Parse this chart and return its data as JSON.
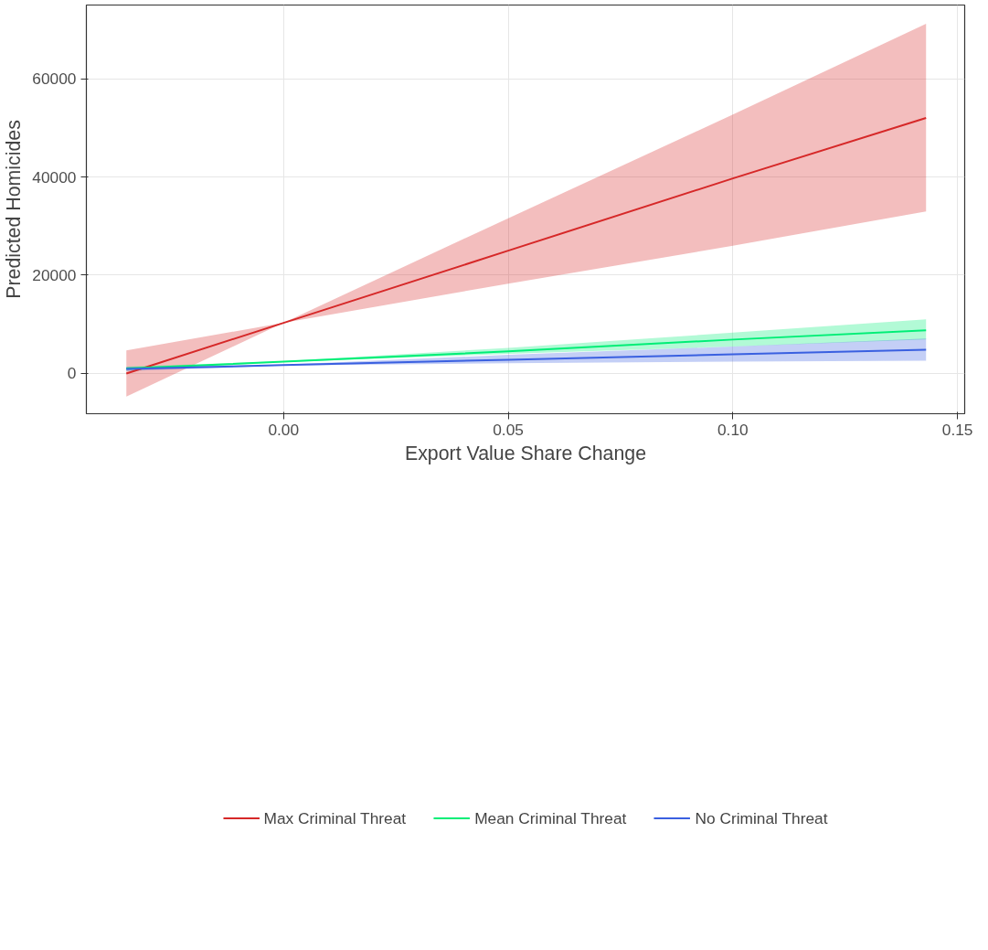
{
  "chart_data": {
    "type": "line",
    "xlabel": "Export Value Share Change",
    "ylabel": "Predicted Homicides",
    "x": [
      -0.035,
      0,
      0.05,
      0.1,
      0.143
    ],
    "series": [
      {
        "name": "Max Criminal Threat",
        "color": "#d62828",
        "values": [
          0,
          10300,
          25000,
          39700,
          52000
        ],
        "lower": [
          -4700,
          10300,
          18300,
          26000,
          33000
        ],
        "upper": [
          4700,
          10300,
          31600,
          52700,
          71200
        ]
      },
      {
        "name": "Mean Criminal Threat",
        "color": "#00ee76",
        "values": [
          1000,
          2400,
          4500,
          6900,
          8800
        ],
        "lower": [
          600,
          2300,
          4000,
          5500,
          6900
        ],
        "upper": [
          1400,
          2500,
          5200,
          8300,
          11000
        ]
      },
      {
        "name": "No Criminal Threat",
        "color": "#3a60e0",
        "values": [
          900,
          1700,
          2800,
          3900,
          4850
        ],
        "lower": [
          500,
          1600,
          2100,
          2400,
          2600
        ],
        "upper": [
          1300,
          1800,
          3800,
          5500,
          7100
        ]
      }
    ],
    "xlim": [
      -0.0439,
      0.1516
    ],
    "ylim": [
      -8200,
      75000
    ],
    "xticks": [
      {
        "value": 0,
        "label": "0.00"
      },
      {
        "value": 0.05,
        "label": "0.05"
      },
      {
        "value": 0.1,
        "label": "0.10"
      },
      {
        "value": 0.15,
        "label": "0.15"
      }
    ],
    "yticks": [
      0,
      20000,
      40000,
      60000
    ],
    "grid": true,
    "legend": "bottom",
    "line_style": "solid",
    "marker": "none"
  }
}
